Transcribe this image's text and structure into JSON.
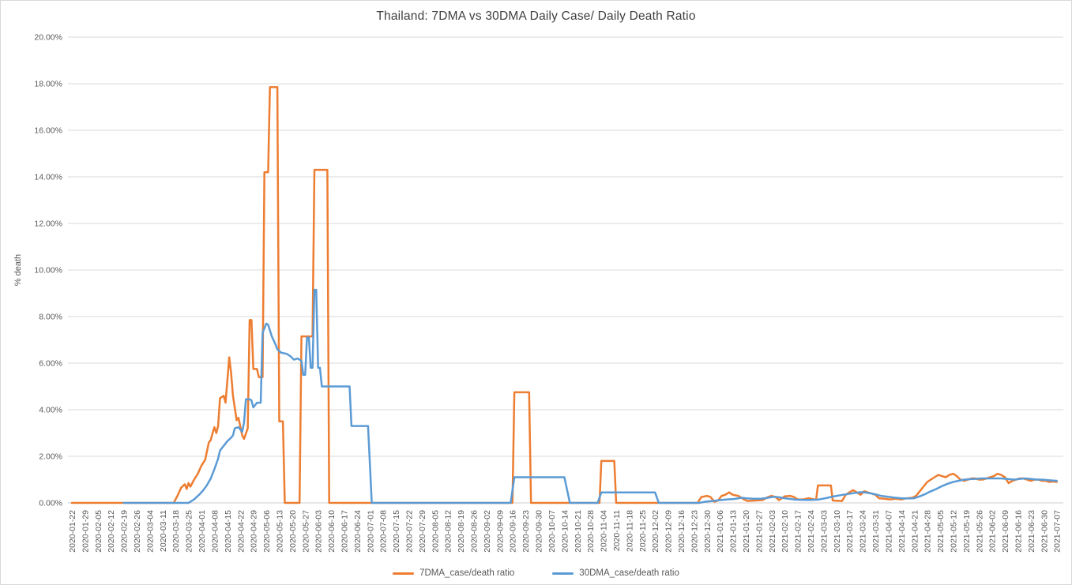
{
  "chart_data": {
    "type": "line",
    "title": "Thailand: 7DMA vs 30DMA Daily Case/ Daily Death Ratio",
    "ylabel": "% death",
    "xlabel": "",
    "ylim": [
      0,
      20
    ],
    "grid": true,
    "legend_position": "bottom",
    "y_ticks": [
      "0.00%",
      "2.00%",
      "4.00%",
      "6.00%",
      "8.00%",
      "10.00%",
      "12.00%",
      "14.00%",
      "16.00%",
      "18.00%",
      "20.00%"
    ],
    "x_ticks": [
      "2020-01-22",
      "2020-01-29",
      "2020-02-05",
      "2020-02-12",
      "2020-02-19",
      "2020-02-26",
      "2020-03-04",
      "2020-03-11",
      "2020-03-18",
      "2020-03-25",
      "2020-04-01",
      "2020-04-08",
      "2020-04-15",
      "2020-04-22",
      "2020-04-29",
      "2020-05-06",
      "2020-05-13",
      "2020-05-20",
      "2020-05-27",
      "2020-06-03",
      "2020-06-10",
      "2020-06-17",
      "2020-06-24",
      "2020-07-01",
      "2020-07-08",
      "2020-07-15",
      "2020-07-22",
      "2020-07-29",
      "2020-08-05",
      "2020-08-12",
      "2020-08-19",
      "2020-08-26",
      "2020-09-02",
      "2020-09-09",
      "2020-09-16",
      "2020-09-23",
      "2020-09-30",
      "2020-10-07",
      "2020-10-14",
      "2020-10-21",
      "2020-10-28",
      "2020-11-04",
      "2020-11-11",
      "2020-11-18",
      "2020-11-25",
      "2020-12-02",
      "2020-12-09",
      "2020-12-16",
      "2020-12-23",
      "2020-12-30",
      "2021-01-06",
      "2021-01-13",
      "2021-01-20",
      "2021-01-27",
      "2021-02-03",
      "2021-02-10",
      "2021-02-17",
      "2021-02-24",
      "2021-03-03",
      "2021-03-10",
      "2021-03-17",
      "2021-03-24",
      "2021-03-31",
      "2021-04-07",
      "2021-04-14",
      "2021-04-21",
      "2021-04-28",
      "2021-05-05",
      "2021-05-12",
      "2021-05-19",
      "2021-05-26",
      "2021-06-02",
      "2021-06-09",
      "2021-06-16",
      "2021-06-23",
      "2021-06-30",
      "2021-07-07"
    ],
    "series": [
      {
        "name": "7DMA_case/death ratio",
        "color": "#ED7D31",
        "points": [
          [
            "2020-01-22",
            0
          ],
          [
            "2020-03-17",
            0
          ],
          [
            "2020-03-19",
            0.3
          ],
          [
            "2020-03-21",
            0.65
          ],
          [
            "2020-03-23",
            0.8
          ],
          [
            "2020-03-24",
            0.6
          ],
          [
            "2020-03-25",
            0.85
          ],
          [
            "2020-03-26",
            0.7
          ],
          [
            "2020-03-28",
            1.0
          ],
          [
            "2020-03-30",
            1.25
          ],
          [
            "2020-04-01",
            1.6
          ],
          [
            "2020-04-03",
            1.85
          ],
          [
            "2020-04-05",
            2.6
          ],
          [
            "2020-04-06",
            2.7
          ],
          [
            "2020-04-07",
            3.0
          ],
          [
            "2020-04-08",
            3.25
          ],
          [
            "2020-04-09",
            3.0
          ],
          [
            "2020-04-10",
            3.3
          ],
          [
            "2020-04-11",
            4.5
          ],
          [
            "2020-04-13",
            4.6
          ],
          [
            "2020-04-14",
            4.3
          ],
          [
            "2020-04-16",
            6.25
          ],
          [
            "2020-04-17",
            5.6
          ],
          [
            "2020-04-18",
            4.6
          ],
          [
            "2020-04-20",
            3.55
          ],
          [
            "2020-04-21",
            3.65
          ],
          [
            "2020-04-23",
            2.9
          ],
          [
            "2020-04-24",
            2.75
          ],
          [
            "2020-04-26",
            3.2
          ],
          [
            "2020-04-27",
            7.85
          ],
          [
            "2020-04-28",
            7.85
          ],
          [
            "2020-04-29",
            5.75
          ],
          [
            "2020-05-01",
            5.75
          ],
          [
            "2020-05-02",
            5.4
          ],
          [
            "2020-05-04",
            5.4
          ],
          [
            "2020-05-05",
            14.2
          ],
          [
            "2020-05-07",
            14.2
          ],
          [
            "2020-05-08",
            17.85
          ],
          [
            "2020-05-12",
            17.85
          ],
          [
            "2020-05-13",
            3.5
          ],
          [
            "2020-05-15",
            3.5
          ],
          [
            "2020-05-16",
            0
          ],
          [
            "2020-05-24",
            0
          ],
          [
            "2020-05-25",
            7.15
          ],
          [
            "2020-05-31",
            7.15
          ],
          [
            "2020-06-01",
            14.3
          ],
          [
            "2020-06-08",
            14.3
          ],
          [
            "2020-06-09",
            0
          ],
          [
            "2020-09-16",
            0
          ],
          [
            "2020-09-17",
            4.75
          ],
          [
            "2020-09-25",
            4.75
          ],
          [
            "2020-09-26",
            0
          ],
          [
            "2020-11-02",
            0
          ],
          [
            "2020-11-03",
            1.8
          ],
          [
            "2020-11-10",
            1.8
          ],
          [
            "2020-11-11",
            0
          ],
          [
            "2020-12-25",
            0
          ],
          [
            "2020-12-27",
            0.25
          ],
          [
            "2020-12-30",
            0.3
          ],
          [
            "2021-01-01",
            0.25
          ],
          [
            "2021-01-03",
            0.05
          ],
          [
            "2021-01-05",
            0.1
          ],
          [
            "2021-01-07",
            0.3
          ],
          [
            "2021-01-09",
            0.35
          ],
          [
            "2021-01-11",
            0.45
          ],
          [
            "2021-01-13",
            0.35
          ],
          [
            "2021-01-16",
            0.3
          ],
          [
            "2021-01-19",
            0.15
          ],
          [
            "2021-01-21",
            0.08
          ],
          [
            "2021-01-25",
            0.1
          ],
          [
            "2021-01-29",
            0.12
          ],
          [
            "2021-02-01",
            0.25
          ],
          [
            "2021-02-03",
            0.3
          ],
          [
            "2021-02-05",
            0.25
          ],
          [
            "2021-02-07",
            0.12
          ],
          [
            "2021-02-10",
            0.28
          ],
          [
            "2021-02-13",
            0.3
          ],
          [
            "2021-02-15",
            0.25
          ],
          [
            "2021-02-17",
            0.15
          ],
          [
            "2021-02-20",
            0.15
          ],
          [
            "2021-02-23",
            0.2
          ],
          [
            "2021-02-26",
            0.15
          ],
          [
            "2021-02-27",
            0.15
          ],
          [
            "2021-02-28",
            0.75
          ],
          [
            "2021-03-07",
            0.75
          ],
          [
            "2021-03-08",
            0.1
          ],
          [
            "2021-03-13",
            0.08
          ],
          [
            "2021-03-15",
            0.35
          ],
          [
            "2021-03-17",
            0.45
          ],
          [
            "2021-03-19",
            0.55
          ],
          [
            "2021-03-21",
            0.45
          ],
          [
            "2021-03-23",
            0.35
          ],
          [
            "2021-03-25",
            0.5
          ],
          [
            "2021-03-27",
            0.45
          ],
          [
            "2021-03-29",
            0.4
          ],
          [
            "2021-03-31",
            0.35
          ],
          [
            "2021-04-02",
            0.2
          ],
          [
            "2021-04-05",
            0.18
          ],
          [
            "2021-04-08",
            0.15
          ],
          [
            "2021-04-11",
            0.18
          ],
          [
            "2021-04-14",
            0.15
          ],
          [
            "2021-04-17",
            0.2
          ],
          [
            "2021-04-20",
            0.22
          ],
          [
            "2021-04-22",
            0.3
          ],
          [
            "2021-04-24",
            0.5
          ],
          [
            "2021-04-26",
            0.7
          ],
          [
            "2021-04-28",
            0.9
          ],
          [
            "2021-04-30",
            1.0
          ],
          [
            "2021-05-02",
            1.1
          ],
          [
            "2021-05-04",
            1.2
          ],
          [
            "2021-05-06",
            1.15
          ],
          [
            "2021-05-08",
            1.1
          ],
          [
            "2021-05-10",
            1.2
          ],
          [
            "2021-05-12",
            1.25
          ],
          [
            "2021-05-14",
            1.15
          ],
          [
            "2021-05-16",
            1.0
          ],
          [
            "2021-05-18",
            0.95
          ],
          [
            "2021-05-20",
            1.0
          ],
          [
            "2021-05-22",
            1.05
          ],
          [
            "2021-05-24",
            1.05
          ],
          [
            "2021-05-26",
            1.0
          ],
          [
            "2021-05-28",
            1.0
          ],
          [
            "2021-05-30",
            1.05
          ],
          [
            "2021-06-01",
            1.1
          ],
          [
            "2021-06-03",
            1.15
          ],
          [
            "2021-06-05",
            1.25
          ],
          [
            "2021-06-07",
            1.2
          ],
          [
            "2021-06-09",
            1.1
          ],
          [
            "2021-06-11",
            0.85
          ],
          [
            "2021-06-13",
            0.95
          ],
          [
            "2021-06-15",
            1.0
          ],
          [
            "2021-06-17",
            1.05
          ],
          [
            "2021-06-19",
            1.05
          ],
          [
            "2021-06-21",
            1.0
          ],
          [
            "2021-06-23",
            0.95
          ],
          [
            "2021-06-25",
            1.0
          ],
          [
            "2021-06-27",
            1.0
          ],
          [
            "2021-06-29",
            0.95
          ],
          [
            "2021-07-01",
            0.95
          ],
          [
            "2021-07-03",
            0.9
          ],
          [
            "2021-07-05",
            0.92
          ],
          [
            "2021-07-07",
            0.9
          ]
        ]
      },
      {
        "name": "30DMA_case/death ratio",
        "color": "#5B9BD5",
        "points": [
          [
            "2020-02-19",
            0
          ],
          [
            "2020-03-25",
            0
          ],
          [
            "2020-03-28",
            0.15
          ],
          [
            "2020-03-31",
            0.37
          ],
          [
            "2020-04-02",
            0.55
          ],
          [
            "2020-04-04",
            0.77
          ],
          [
            "2020-04-06",
            1.05
          ],
          [
            "2020-04-08",
            1.45
          ],
          [
            "2020-04-10",
            1.9
          ],
          [
            "2020-04-11",
            2.25
          ],
          [
            "2020-04-13",
            2.45
          ],
          [
            "2020-04-15",
            2.65
          ],
          [
            "2020-04-17",
            2.8
          ],
          [
            "2020-04-18",
            2.9
          ],
          [
            "2020-04-19",
            3.2
          ],
          [
            "2020-04-21",
            3.25
          ],
          [
            "2020-04-22",
            3.15
          ],
          [
            "2020-04-23",
            3.05
          ],
          [
            "2020-04-24",
            3.45
          ],
          [
            "2020-04-25",
            4.45
          ],
          [
            "2020-04-27",
            4.45
          ],
          [
            "2020-04-28",
            4.4
          ],
          [
            "2020-04-29",
            4.1
          ],
          [
            "2020-05-01",
            4.3
          ],
          [
            "2020-05-03",
            4.3
          ],
          [
            "2020-05-04",
            7.3
          ],
          [
            "2020-05-05",
            7.5
          ],
          [
            "2020-05-06",
            7.7
          ],
          [
            "2020-05-07",
            7.65
          ],
          [
            "2020-05-09",
            7.15
          ],
          [
            "2020-05-11",
            6.8
          ],
          [
            "2020-05-12",
            6.6
          ],
          [
            "2020-05-14",
            6.45
          ],
          [
            "2020-05-17",
            6.4
          ],
          [
            "2020-05-19",
            6.3
          ],
          [
            "2020-05-21",
            6.15
          ],
          [
            "2020-05-23",
            6.2
          ],
          [
            "2020-05-25",
            6.1
          ],
          [
            "2020-05-26",
            5.5
          ],
          [
            "2020-05-27",
            5.5
          ],
          [
            "2020-05-28",
            7.1
          ],
          [
            "2020-05-29",
            7.1
          ],
          [
            "2020-05-30",
            5.8
          ],
          [
            "2020-05-31",
            5.8
          ],
          [
            "2020-06-01",
            9.15
          ],
          [
            "2020-06-02",
            9.15
          ],
          [
            "2020-06-03",
            5.8
          ],
          [
            "2020-06-04",
            5.8
          ],
          [
            "2020-06-05",
            5.0
          ],
          [
            "2020-06-20",
            5.0
          ],
          [
            "2020-06-21",
            3.3
          ],
          [
            "2020-06-30",
            3.3
          ],
          [
            "2020-07-02",
            0
          ],
          [
            "2020-09-15",
            0
          ],
          [
            "2020-09-17",
            1.1
          ],
          [
            "2020-10-14",
            1.1
          ],
          [
            "2020-10-17",
            0
          ],
          [
            "2020-11-01",
            0
          ],
          [
            "2020-11-03",
            0.45
          ],
          [
            "2020-12-02",
            0.45
          ],
          [
            "2020-12-04",
            0
          ],
          [
            "2020-12-26",
            0
          ],
          [
            "2020-12-29",
            0.05
          ],
          [
            "2021-01-02",
            0.08
          ],
          [
            "2021-01-06",
            0.12
          ],
          [
            "2021-01-10",
            0.15
          ],
          [
            "2021-01-14",
            0.17
          ],
          [
            "2021-01-16",
            0.2
          ],
          [
            "2021-01-18",
            0.22
          ],
          [
            "2021-01-20",
            0.2
          ],
          [
            "2021-01-24",
            0.18
          ],
          [
            "2021-01-28",
            0.18
          ],
          [
            "2021-02-01",
            0.22
          ],
          [
            "2021-02-04",
            0.26
          ],
          [
            "2021-02-07",
            0.24
          ],
          [
            "2021-02-10",
            0.2
          ],
          [
            "2021-02-13",
            0.17
          ],
          [
            "2021-02-16",
            0.14
          ],
          [
            "2021-02-20",
            0.13
          ],
          [
            "2021-02-24",
            0.13
          ],
          [
            "2021-02-28",
            0.14
          ],
          [
            "2021-03-04",
            0.2
          ],
          [
            "2021-03-08",
            0.27
          ],
          [
            "2021-03-12",
            0.33
          ],
          [
            "2021-03-16",
            0.38
          ],
          [
            "2021-03-20",
            0.43
          ],
          [
            "2021-03-24",
            0.46
          ],
          [
            "2021-03-28",
            0.42
          ],
          [
            "2021-03-31",
            0.37
          ],
          [
            "2021-04-03",
            0.3
          ],
          [
            "2021-04-07",
            0.26
          ],
          [
            "2021-04-10",
            0.23
          ],
          [
            "2021-04-14",
            0.2
          ],
          [
            "2021-04-18",
            0.19
          ],
          [
            "2021-04-21",
            0.2
          ],
          [
            "2021-04-24",
            0.28
          ],
          [
            "2021-04-27",
            0.38
          ],
          [
            "2021-04-30",
            0.5
          ],
          [
            "2021-05-03",
            0.6
          ],
          [
            "2021-05-06",
            0.72
          ],
          [
            "2021-05-09",
            0.82
          ],
          [
            "2021-05-12",
            0.9
          ],
          [
            "2021-05-15",
            0.95
          ],
          [
            "2021-05-18",
            1.0
          ],
          [
            "2021-05-21",
            1.02
          ],
          [
            "2021-05-24",
            1.03
          ],
          [
            "2021-05-27",
            1.05
          ],
          [
            "2021-05-30",
            1.05
          ],
          [
            "2021-06-03",
            1.05
          ],
          [
            "2021-06-07",
            1.05
          ],
          [
            "2021-06-11",
            1.02
          ],
          [
            "2021-06-14",
            1.0
          ],
          [
            "2021-06-17",
            1.03
          ],
          [
            "2021-06-20",
            1.05
          ],
          [
            "2021-06-23",
            1.03
          ],
          [
            "2021-06-26",
            1.0
          ],
          [
            "2021-06-29",
            1.0
          ],
          [
            "2021-07-02",
            0.98
          ],
          [
            "2021-07-05",
            0.96
          ],
          [
            "2021-07-07",
            0.95
          ]
        ]
      }
    ]
  }
}
